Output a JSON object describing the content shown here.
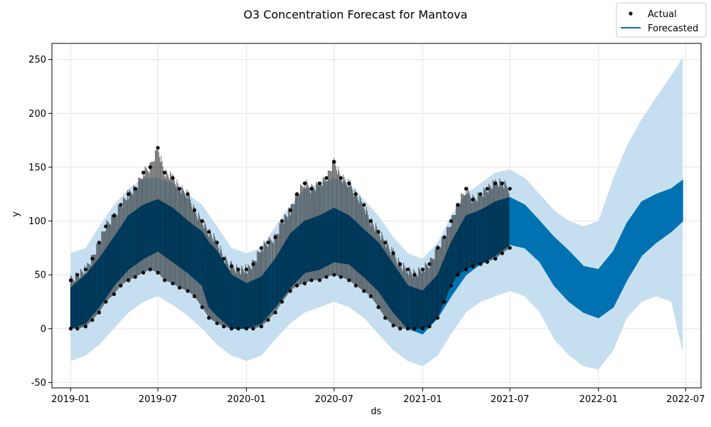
{
  "chart_data": {
    "type": "line",
    "title": "O3 Concentration Forecast for Mantova",
    "xlabel": "ds",
    "ylabel": "y",
    "xlim": [
      "2018-11-23",
      "2022-08-02"
    ],
    "ylim": [
      -55,
      265
    ],
    "x_ticks": [
      "2019-01",
      "2019-07",
      "2020-01",
      "2020-07",
      "2021-01",
      "2021-07",
      "2022-01",
      "2022-07"
    ],
    "y_ticks": [
      -50,
      0,
      50,
      100,
      150,
      200,
      250
    ],
    "grid": true,
    "legend_position": "top-right",
    "colors": {
      "actual": "#000000",
      "forecast": "#0072B2",
      "uncertainty": "#c6dff0",
      "grid": "#e5e5e5"
    },
    "series": [
      {
        "name": "Actual",
        "kind": "scatter",
        "points": [
          [
            "2019-01-01",
            [
              0,
              45
            ]
          ],
          [
            "2019-01-15",
            [
              0,
              50
            ]
          ],
          [
            "2019-02-01",
            [
              2,
              55
            ]
          ],
          [
            "2019-02-15",
            [
              8,
              65
            ]
          ],
          [
            "2019-03-01",
            [
              15,
              80
            ]
          ],
          [
            "2019-03-15",
            [
              25,
              95
            ]
          ],
          [
            "2019-04-01",
            [
              32,
              105
            ]
          ],
          [
            "2019-04-15",
            [
              40,
              115
            ]
          ],
          [
            "2019-05-01",
            [
              45,
              125
            ]
          ],
          [
            "2019-05-15",
            [
              48,
              130
            ]
          ],
          [
            "2019-06-01",
            [
              52,
              145
            ]
          ],
          [
            "2019-06-15",
            [
              55,
              150
            ]
          ],
          [
            "2019-07-01",
            [
              52,
              168
            ]
          ],
          [
            "2019-07-15",
            [
              45,
              145
            ]
          ],
          [
            "2019-08-01",
            [
              42,
              140
            ]
          ],
          [
            "2019-08-15",
            [
              38,
              130
            ]
          ],
          [
            "2019-09-01",
            [
              35,
              125
            ]
          ],
          [
            "2019-09-15",
            [
              30,
              110
            ]
          ],
          [
            "2019-10-01",
            [
              20,
              100
            ]
          ],
          [
            "2019-10-15",
            [
              10,
              90
            ]
          ],
          [
            "2019-11-01",
            [
              5,
              80
            ]
          ],
          [
            "2019-11-15",
            [
              2,
              65
            ]
          ],
          [
            "2019-12-01",
            [
              0,
              58
            ]
          ],
          [
            "2019-12-15",
            [
              0,
              55
            ]
          ],
          [
            "2020-01-01",
            [
              0,
              55
            ]
          ],
          [
            "2020-01-15",
            [
              0,
              60
            ]
          ],
          [
            "2020-02-01",
            [
              2,
              75
            ]
          ],
          [
            "2020-02-15",
            [
              8,
              80
            ]
          ],
          [
            "2020-03-01",
            [
              15,
              85
            ]
          ],
          [
            "2020-03-15",
            [
              25,
              100
            ]
          ],
          [
            "2020-04-01",
            [
              35,
              110
            ]
          ],
          [
            "2020-04-15",
            [
              40,
              125
            ]
          ],
          [
            "2020-05-01",
            [
              42,
              135
            ]
          ],
          [
            "2020-05-15",
            [
              45,
              130
            ]
          ],
          [
            "2020-06-01",
            [
              45,
              135
            ]
          ],
          [
            "2020-06-15",
            [
              48,
              140
            ]
          ],
          [
            "2020-07-01",
            [
              50,
              155
            ]
          ],
          [
            "2020-07-15",
            [
              48,
              140
            ]
          ],
          [
            "2020-08-01",
            [
              45,
              135
            ]
          ],
          [
            "2020-08-15",
            [
              40,
              125
            ]
          ],
          [
            "2020-09-01",
            [
              35,
              115
            ]
          ],
          [
            "2020-09-15",
            [
              30,
              100
            ]
          ],
          [
            "2020-10-01",
            [
              20,
              90
            ]
          ],
          [
            "2020-10-15",
            [
              10,
              80
            ]
          ],
          [
            "2020-11-01",
            [
              3,
              70
            ]
          ],
          [
            "2020-11-15",
            [
              0,
              60
            ]
          ],
          [
            "2020-12-01",
            [
              0,
              55
            ]
          ],
          [
            "2020-12-15",
            [
              0,
              50
            ]
          ],
          [
            "2021-01-01",
            [
              0,
              55
            ]
          ],
          [
            "2021-01-15",
            [
              2,
              60
            ]
          ],
          [
            "2021-02-01",
            [
              10,
              75
            ]
          ],
          [
            "2021-02-15",
            [
              25,
              85
            ]
          ],
          [
            "2021-03-01",
            [
              40,
              100
            ]
          ],
          [
            "2021-03-15",
            [
              50,
              115
            ]
          ],
          [
            "2021-04-01",
            [
              55,
              130
            ]
          ],
          [
            "2021-04-15",
            [
              58,
              120
            ]
          ],
          [
            "2021-05-01",
            [
              60,
              125
            ]
          ],
          [
            "2021-05-15",
            [
              62,
              130
            ]
          ],
          [
            "2021-06-01",
            [
              65,
              135
            ]
          ],
          [
            "2021-06-15",
            [
              70,
              135
            ]
          ],
          [
            "2021-07-01",
            [
              75,
              130
            ]
          ]
        ]
      },
      {
        "name": "Forecasted",
        "kind": "line",
        "points": [
          [
            "2019-01-01",
            [
              0,
              38
            ]
          ],
          [
            "2019-02-01",
            [
              5,
              50
            ]
          ],
          [
            "2019-03-01",
            [
              20,
              65
            ]
          ],
          [
            "2019-04-01",
            [
              40,
              85
            ]
          ],
          [
            "2019-05-01",
            [
              55,
              105
            ]
          ],
          [
            "2019-06-01",
            [
              65,
              115
            ]
          ],
          [
            "2019-07-01",
            [
              72,
              120
            ]
          ],
          [
            "2019-08-01",
            [
              62,
              112
            ]
          ],
          [
            "2019-09-01",
            [
              52,
              100
            ]
          ],
          [
            "2019-10-01",
            [
              40,
              90
            ]
          ],
          [
            "2019-10-15",
            [
              20,
              80
            ]
          ],
          [
            "2019-11-01",
            [
              12,
              72
            ]
          ],
          [
            "2019-12-01",
            [
              0,
              50
            ]
          ],
          [
            "2020-01-01",
            [
              0,
              42
            ]
          ],
          [
            "2020-02-01",
            [
              5,
              48
            ]
          ],
          [
            "2020-03-01",
            [
              20,
              65
            ]
          ],
          [
            "2020-04-01",
            [
              38,
              88
            ]
          ],
          [
            "2020-05-01",
            [
              52,
              100
            ]
          ],
          [
            "2020-06-01",
            [
              55,
              105
            ]
          ],
          [
            "2020-07-01",
            [
              62,
              112
            ]
          ],
          [
            "2020-08-01",
            [
              60,
              105
            ]
          ],
          [
            "2020-09-01",
            [
              48,
              92
            ]
          ],
          [
            "2020-10-01",
            [
              35,
              80
            ]
          ],
          [
            "2020-11-01",
            [
              15,
              60
            ]
          ],
          [
            "2020-12-01",
            [
              0,
              40
            ]
          ],
          [
            "2021-01-01",
            [
              -5,
              35
            ]
          ],
          [
            "2021-02-01",
            [
              10,
              50
            ]
          ],
          [
            "2021-03-01",
            [
              30,
              80
            ]
          ],
          [
            "2021-04-01",
            [
              50,
              105
            ]
          ],
          [
            "2021-05-01",
            [
              60,
              110
            ]
          ],
          [
            "2021-06-01",
            [
              68,
              118
            ]
          ],
          [
            "2021-07-01",
            [
              78,
              122
            ]
          ],
          [
            "2021-08-01",
            [
              75,
              115
            ]
          ],
          [
            "2021-09-01",
            [
              62,
              100
            ]
          ],
          [
            "2021-10-01",
            [
              40,
              85
            ]
          ],
          [
            "2021-11-01",
            [
              25,
              72
            ]
          ],
          [
            "2021-12-01",
            [
              15,
              58
            ]
          ],
          [
            "2022-01-01",
            [
              10,
              55
            ]
          ],
          [
            "2022-02-01",
            [
              20,
              72
            ]
          ],
          [
            "2022-03-01",
            [
              45,
              98
            ]
          ],
          [
            "2022-04-01",
            [
              68,
              118
            ]
          ],
          [
            "2022-05-01",
            [
              80,
              125
            ]
          ],
          [
            "2022-06-01",
            [
              90,
              130
            ]
          ],
          [
            "2022-06-25",
            [
              100,
              138
            ]
          ]
        ]
      }
    ],
    "uncertainty_interval": [
      [
        "2019-01-01",
        [
          -30,
          70
        ]
      ],
      [
        "2019-02-01",
        [
          -25,
          75
        ]
      ],
      [
        "2019-03-01",
        [
          -15,
          95
        ]
      ],
      [
        "2019-04-01",
        [
          0,
          115
        ]
      ],
      [
        "2019-05-01",
        [
          15,
          130
        ]
      ],
      [
        "2019-06-01",
        [
          25,
          140
        ]
      ],
      [
        "2019-07-01",
        [
          30,
          140
        ]
      ],
      [
        "2019-08-01",
        [
          22,
          135
        ]
      ],
      [
        "2019-09-01",
        [
          12,
          125
        ]
      ],
      [
        "2019-10-01",
        [
          0,
          115
        ]
      ],
      [
        "2019-11-01",
        [
          -15,
          95
        ]
      ],
      [
        "2019-12-01",
        [
          -25,
          75
        ]
      ],
      [
        "2020-01-01",
        [
          -30,
          70
        ]
      ],
      [
        "2020-02-01",
        [
          -25,
          75
        ]
      ],
      [
        "2020-03-01",
        [
          -10,
          95
        ]
      ],
      [
        "2020-04-01",
        [
          5,
          115
        ]
      ],
      [
        "2020-05-01",
        [
          15,
          130
        ]
      ],
      [
        "2020-06-01",
        [
          20,
          135
        ]
      ],
      [
        "2020-07-01",
        [
          25,
          140
        ]
      ],
      [
        "2020-08-01",
        [
          20,
          135
        ]
      ],
      [
        "2020-09-01",
        [
          10,
          120
        ]
      ],
      [
        "2020-10-01",
        [
          -5,
          105
        ]
      ],
      [
        "2020-11-01",
        [
          -20,
          85
        ]
      ],
      [
        "2020-12-01",
        [
          -30,
          70
        ]
      ],
      [
        "2021-01-01",
        [
          -35,
          65
        ]
      ],
      [
        "2021-02-01",
        [
          -25,
          80
        ]
      ],
      [
        "2021-03-01",
        [
          -5,
          105
        ]
      ],
      [
        "2021-04-01",
        [
          15,
          125
        ]
      ],
      [
        "2021-05-01",
        [
          25,
          135
        ]
      ],
      [
        "2021-06-01",
        [
          30,
          145
        ]
      ],
      [
        "2021-07-01",
        [
          35,
          148
        ]
      ],
      [
        "2021-08-01",
        [
          30,
          140
        ]
      ],
      [
        "2021-09-01",
        [
          15,
          125
        ]
      ],
      [
        "2021-10-01",
        [
          -10,
          110
        ]
      ],
      [
        "2021-11-01",
        [
          -25,
          100
        ]
      ],
      [
        "2021-12-01",
        [
          -35,
          95
        ]
      ],
      [
        "2022-01-01",
        [
          -38,
          100
        ]
      ],
      [
        "2022-02-01",
        [
          -20,
          140
        ]
      ],
      [
        "2022-03-01",
        [
          10,
          170
        ]
      ],
      [
        "2022-04-01",
        [
          25,
          195
        ]
      ],
      [
        "2022-05-01",
        [
          30,
          215
        ]
      ],
      [
        "2022-06-01",
        [
          25,
          235
        ]
      ],
      [
        "2022-06-25",
        [
          -22,
          252
        ]
      ]
    ]
  }
}
